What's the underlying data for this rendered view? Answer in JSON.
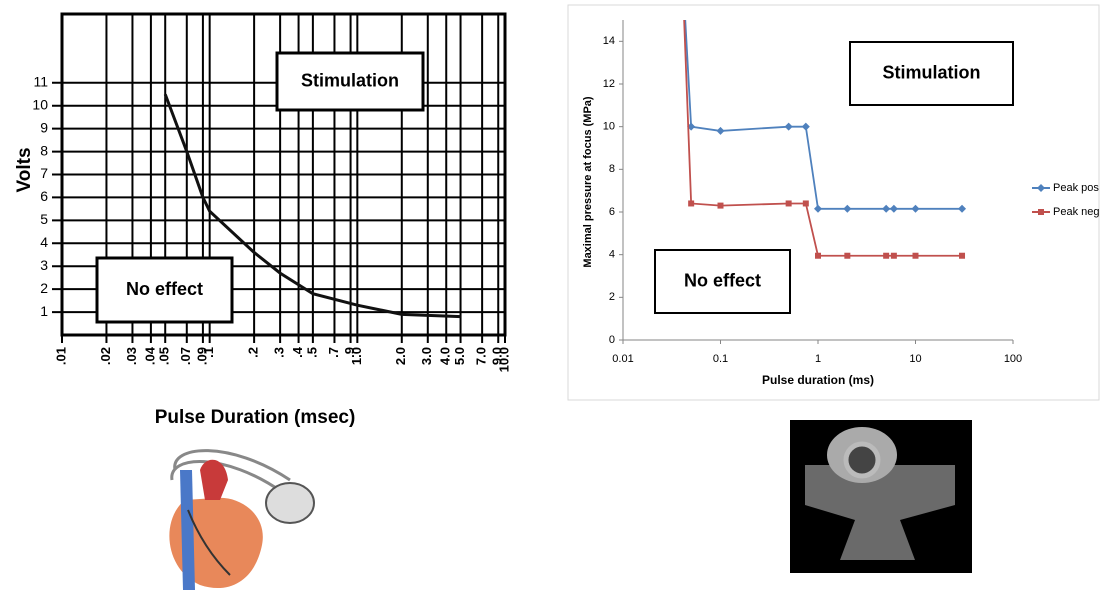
{
  "chart_data": [
    {
      "type": "line",
      "xlabel": "Pulse Duration  (msec)",
      "ylabel": "Volts",
      "log_x": true,
      "grid": true,
      "x": [
        0.05,
        0.07,
        0.09,
        0.1,
        0.2,
        0.3,
        0.5,
        1,
        2,
        5
      ],
      "series": [
        {
          "color": "#111111",
          "values": [
            10.5,
            8,
            6,
            5.4,
            3.6,
            2.7,
            1.8,
            1.3,
            0.9,
            0.8
          ]
        }
      ],
      "xlim": [
        0.01,
        10
      ],
      "ylim": [
        0,
        14
      ],
      "xticks": [
        {
          "value": 0.01,
          "label": ".01"
        },
        {
          "value": 0.02,
          "label": ".02"
        },
        {
          "value": 0.03,
          "label": ".03"
        },
        {
          "value": 0.04,
          "label": ".04"
        },
        {
          "value": 0.05,
          "label": ".05"
        },
        {
          "value": 0.07,
          "label": ".07"
        },
        {
          "value": 0.09,
          "label": ".09"
        },
        {
          "value": 0.1,
          "label": ".1"
        },
        {
          "value": 0.2,
          "label": ".2"
        },
        {
          "value": 0.3,
          "label": ".3"
        },
        {
          "value": 0.4,
          "label": ".4"
        },
        {
          "value": 0.5,
          "label": ".5"
        },
        {
          "value": 0.7,
          "label": ".7"
        },
        {
          "value": 0.9,
          "label": ".9"
        },
        {
          "value": 1,
          "label": "1.0"
        },
        {
          "value": 2,
          "label": "2.0"
        },
        {
          "value": 3,
          "label": "3.0"
        },
        {
          "value": 4,
          "label": "4.0"
        },
        {
          "value": 5,
          "label": "5.0"
        },
        {
          "value": 7,
          "label": "7.0"
        },
        {
          "value": 9,
          "label": "9.0"
        },
        {
          "value": 10,
          "label": "10.0"
        }
      ],
      "yticks": [
        1,
        2,
        3,
        4,
        5,
        6,
        7,
        8,
        9,
        10,
        11
      ],
      "annotations": [
        "Stimulation",
        "No effect"
      ]
    },
    {
      "type": "line",
      "xlabel": "Pulse duration (ms)",
      "ylabel": "Maximal pressure at focus (MPa)",
      "log_x": true,
      "grid": false,
      "legend": "right",
      "x": [
        0.04,
        0.05,
        0.1,
        0.5,
        0.75,
        1,
        2,
        5,
        6,
        10,
        30
      ],
      "series": [
        {
          "name": "Peak pos",
          "color": "#4f81bd",
          "marker": "diamond",
          "values": [
            18,
            10,
            9.8,
            10,
            10,
            6.15,
            6.15,
            6.15,
            6.15,
            6.15,
            6.15
          ]
        },
        {
          "name": "Peak neg",
          "color": "#c0504d",
          "marker": "square",
          "values": [
            18,
            6.4,
            6.3,
            6.4,
            6.4,
            3.95,
            3.95,
            3.95,
            3.95,
            3.95,
            3.95
          ]
        }
      ],
      "xlim": [
        0.01,
        100
      ],
      "ylim": [
        0,
        15
      ],
      "xticks": [
        0.01,
        0.1,
        1,
        10,
        100
      ],
      "yticks": [
        0,
        2,
        4,
        6,
        8,
        10,
        12,
        14
      ],
      "annotations": [
        "Stimulation",
        "No effect"
      ]
    }
  ]
}
